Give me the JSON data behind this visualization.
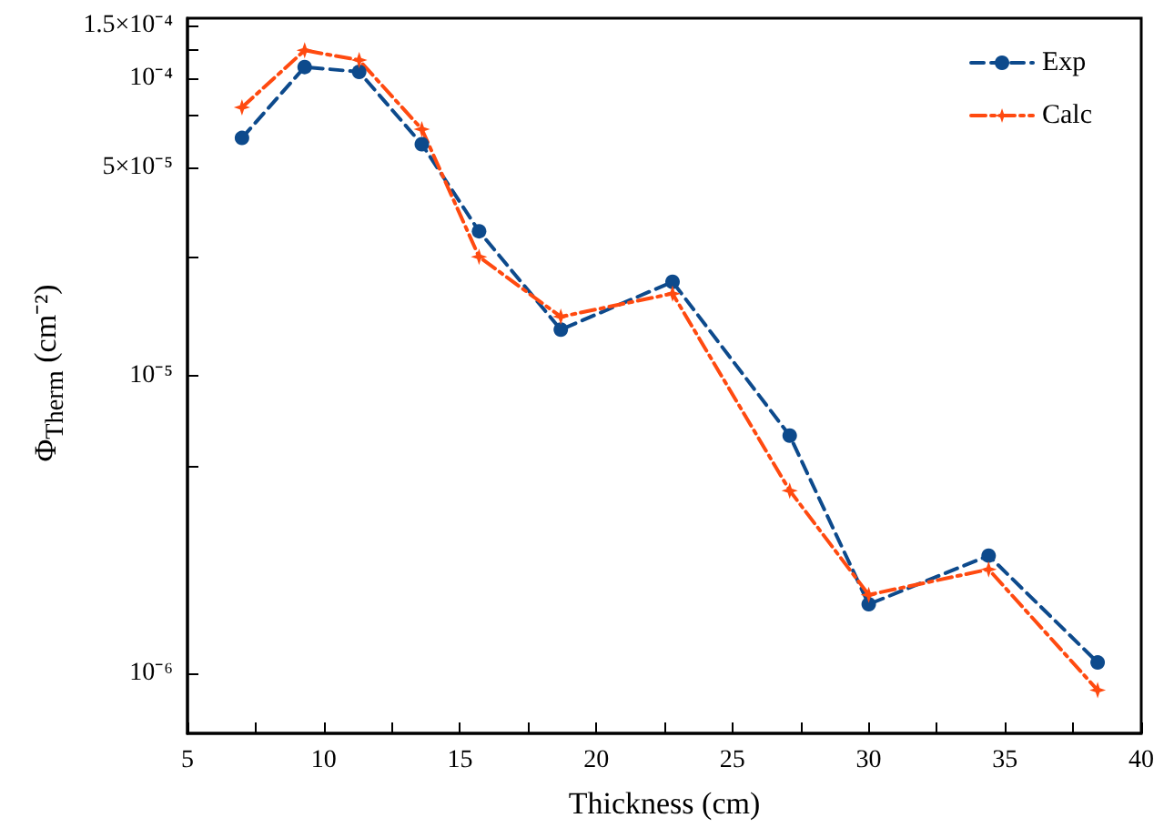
{
  "chart_data": {
    "type": "line",
    "xlabel": "Thickness (cm)",
    "ylabel": "Φ$_{Therm}$ (cm⁻²)",
    "log": "y",
    "grid": false,
    "legend": "top right",
    "xlim": [
      5,
      40
    ],
    "ylim": [
      6.3e-07,
      0.000159
    ],
    "xticks": [
      5,
      {
        "value": 7.5,
        "label": null
      },
      10,
      {
        "value": 12.5,
        "label": null
      },
      15,
      {
        "value": 17.5,
        "label": null
      },
      20,
      {
        "value": 22.5,
        "label": null
      },
      25,
      {
        "value": 27.5,
        "label": null
      },
      30,
      {
        "value": 32.5,
        "label": null
      },
      35,
      {
        "value": 37.5,
        "label": null
      },
      40
    ],
    "yticks": [
      {
        "value": 1e-06,
        "label": "10⁻⁶"
      },
      {
        "value": 5e-06,
        "label": null
      },
      {
        "value": 1e-05,
        "label": "10⁻⁵"
      },
      {
        "value": 2.5e-05,
        "label": null
      },
      {
        "value": 5e-05,
        "label": "5×10⁻⁵"
      },
      {
        "value": 7.5e-05,
        "label": null
      },
      {
        "value": 0.0001,
        "label": "10⁻⁴"
      },
      {
        "value": 0.000125,
        "label": null
      },
      {
        "value": 0.00015,
        "label": "1.5×10⁻⁴"
      }
    ],
    "x": [
      7.0,
      9.3,
      11.3,
      13.6,
      15.7,
      18.7,
      22.8,
      27.1,
      30.0,
      34.4,
      38.4
    ],
    "series": [
      {
        "name": "Exp",
        "color": "#0d4a8c",
        "marker": "circle",
        "line_style": "dashed",
        "values": [
          6.3e-05,
          0.000109,
          0.000105,
          6e-05,
          3.06e-05,
          1.43e-05,
          2.07e-05,
          6.3e-06,
          1.71e-06,
          2.49e-06,
          1.09e-06
        ]
      },
      {
        "name": "Calc",
        "color": "#ff4a10",
        "marker": "star",
        "line_style": "dashdot",
        "values": [
          7.98e-05,
          0.000124,
          0.000115,
          6.74e-05,
          2.51e-05,
          1.58e-05,
          1.89e-05,
          4.12e-06,
          1.84e-06,
          2.24e-06,
          8.8e-07
        ]
      }
    ]
  }
}
